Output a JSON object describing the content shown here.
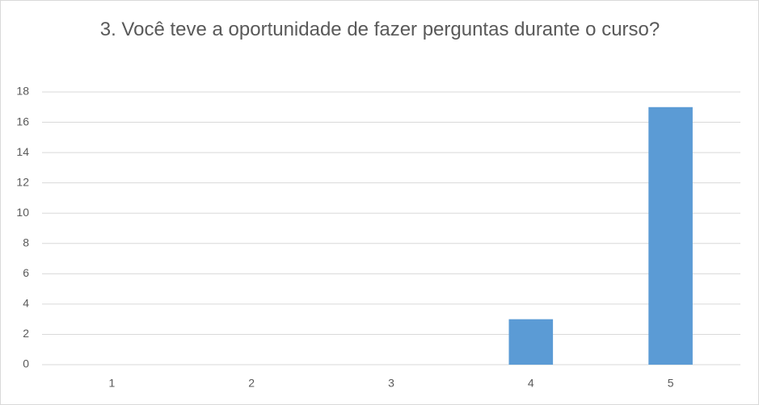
{
  "chart_data": {
    "type": "bar",
    "title": "3. Você teve a oportunidade de fazer perguntas durante o curso?",
    "categories": [
      "1",
      "2",
      "3",
      "4",
      "5"
    ],
    "values": [
      0,
      0,
      0,
      3,
      17
    ],
    "color": "#5b9bd5",
    "ylim": [
      0,
      18
    ],
    "yticks": [
      0,
      2,
      4,
      6,
      8,
      10,
      12,
      14,
      16,
      18
    ],
    "grid": true
  }
}
